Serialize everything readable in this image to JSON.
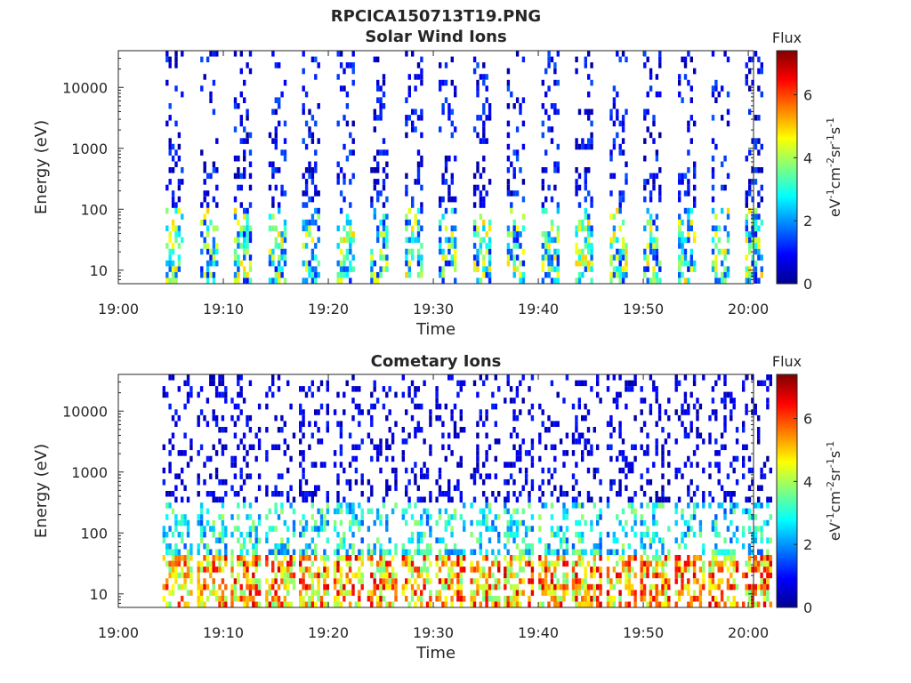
{
  "figure": {
    "main_title": "RPCICA150713T19.PNG"
  },
  "chart_data": [
    {
      "type": "heatmap",
      "title": "Solar Wind Ions",
      "xlabel": "Time",
      "ylabel": "Energy (eV)",
      "x_tick_labels": [
        "19:00",
        "19:10",
        "19:20",
        "19:30",
        "19:40",
        "19:50",
        "20:00"
      ],
      "x_tick_minutes": [
        0,
        10,
        20,
        30,
        40,
        50,
        60
      ],
      "xlim_minutes": [
        0,
        60.5
      ],
      "y_scale": "log",
      "y_ticks": [
        10,
        100,
        1000,
        10000
      ],
      "y_tick_labels": [
        "10",
        "100",
        "1000",
        "10000"
      ],
      "ylim": [
        6,
        40000
      ],
      "colorbar": {
        "title": "Flux",
        "ticks": [
          0,
          2,
          4,
          6
        ],
        "tick_labels": [
          "0",
          "2",
          "4",
          "6"
        ],
        "range": [
          0,
          7.4
        ],
        "colormap": "jet",
        "unit_parts": [
          {
            "t": "eV",
            "sup": false
          },
          {
            "t": "-1",
            "sup": true
          },
          {
            "t": "cm",
            "sup": false
          },
          {
            "t": "-2",
            "sup": true
          },
          {
            "t": "sr",
            "sup": false
          },
          {
            "t": "-1",
            "sup": true
          },
          {
            "t": "s",
            "sup": false
          },
          {
            "t": "-1",
            "sup": true
          }
        ]
      },
      "burst_start_minutes": [
        4.5,
        7.8,
        11.0,
        14.3,
        17.5,
        20.8,
        24.0,
        27.3,
        30.5,
        33.8,
        37.0,
        40.3,
        43.5,
        46.8,
        50.0,
        53.3,
        56.5,
        59.7
      ],
      "burst_width_minutes": 1.6,
      "intensity_profile": [
        {
          "energy_max": 100,
          "min": 1.0,
          "max": 5.0
        },
        {
          "energy_max": 40000,
          "min": 0.2,
          "max": 1.6
        }
      ]
    },
    {
      "type": "heatmap",
      "title": "Cometary Ions",
      "xlabel": "Time",
      "ylabel": "Energy (eV)",
      "x_tick_labels": [
        "19:00",
        "19:10",
        "19:20",
        "19:30",
        "19:40",
        "19:50",
        "20:00"
      ],
      "x_tick_minutes": [
        0,
        10,
        20,
        30,
        40,
        50,
        60
      ],
      "xlim_minutes": [
        0,
        60.5
      ],
      "y_scale": "log",
      "y_ticks": [
        10,
        100,
        1000,
        10000
      ],
      "y_tick_labels": [
        "10",
        "100",
        "1000",
        "10000"
      ],
      "ylim": [
        6,
        40000
      ],
      "colorbar": {
        "title": "Flux",
        "ticks": [
          0,
          2,
          4,
          6
        ],
        "tick_labels": [
          "0",
          "2",
          "4",
          "6"
        ],
        "range": [
          0,
          7.4
        ],
        "colormap": "jet",
        "unit_parts": [
          {
            "t": "eV",
            "sup": false
          },
          {
            "t": "-1",
            "sup": true
          },
          {
            "t": "cm",
            "sup": false
          },
          {
            "t": "-2",
            "sup": true
          },
          {
            "t": "sr",
            "sup": false
          },
          {
            "t": "-1",
            "sup": true
          },
          {
            "t": "s",
            "sup": false
          },
          {
            "t": "-1",
            "sup": true
          }
        ]
      },
      "burst_start_minutes": [
        4.2,
        7.5,
        10.7,
        14.0,
        17.2,
        20.5,
        23.7,
        27.0,
        30.2,
        33.5,
        36.7,
        40.0,
        43.2,
        46.5,
        49.7,
        53.0,
        56.2,
        59.4
      ],
      "burst_width_minutes": 2.8,
      "intensity_profile": [
        {
          "energy_max": 40,
          "min": 3.5,
          "max": 6.8
        },
        {
          "energy_max": 300,
          "min": 1.5,
          "max": 4.0
        },
        {
          "energy_max": 40000,
          "min": 0.2,
          "max": 1.2
        }
      ]
    }
  ]
}
